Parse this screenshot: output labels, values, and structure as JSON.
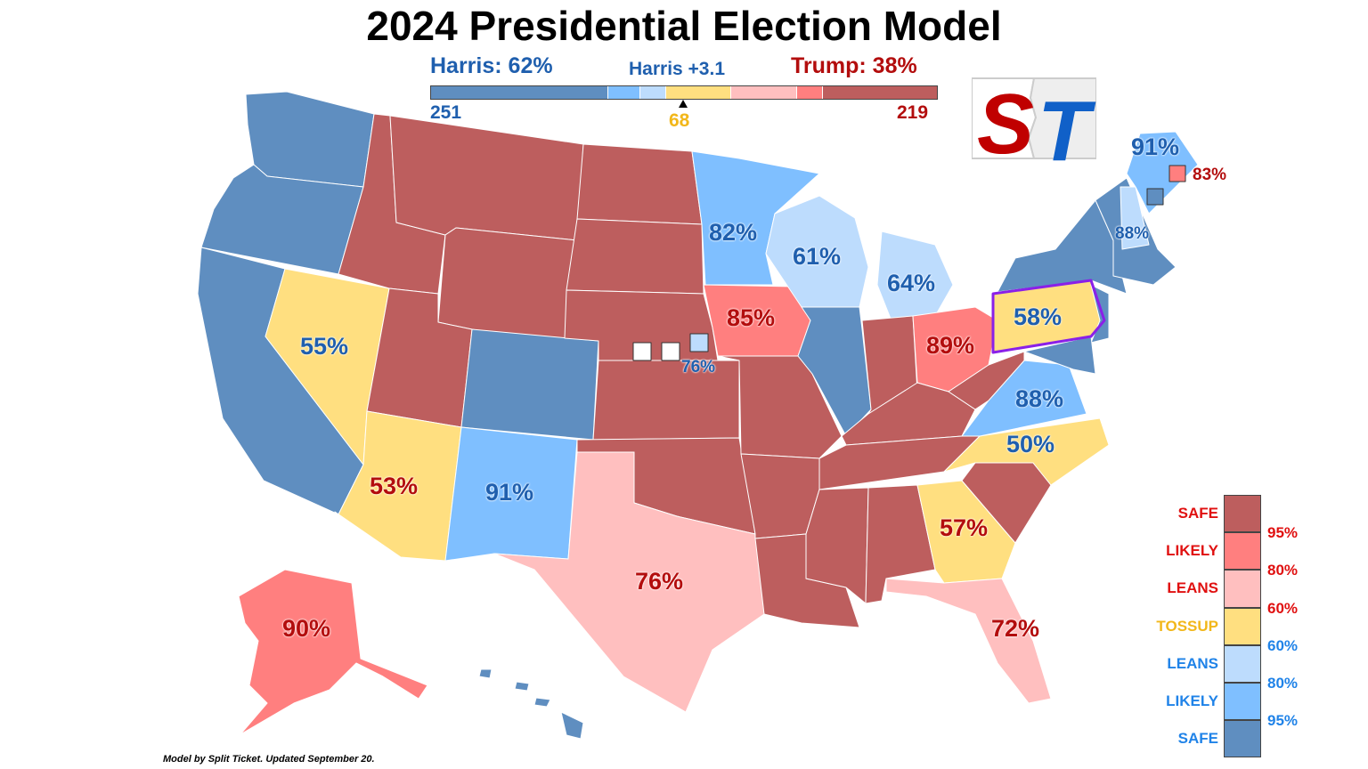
{
  "title": "2024 Presidential Election Model",
  "header": {
    "left": "Harris: 62%",
    "middle": "Harris +3.1",
    "right": "Trump: 38%",
    "harris_ev": "251",
    "tossup_ev": "68",
    "trump_ev": "219"
  },
  "colors": {
    "safe_d": "#5f8ec0",
    "likely_d": "#7fbfff",
    "leans_d": "#bddcfd",
    "tossup": "#ffdf80",
    "leans_r": "#ffbfbf",
    "likely_r": "#ff7f7f",
    "safe_r": "#bd5e5e",
    "harris_text": "#1f5fae",
    "trump_text": "#b30d0d",
    "legend_r_text": "#e01010",
    "legend_d_text": "#2083e8",
    "tossup_text": "#f2b71a"
  },
  "bar_segments": [
    {
      "rating": "safe_d",
      "share": 0.352
    },
    {
      "rating": "likely_d",
      "share": 0.063
    },
    {
      "rating": "leans_d",
      "share": 0.049
    },
    {
      "rating": "tossup",
      "share": 0.128
    },
    {
      "rating": "leans_r",
      "share": 0.13
    },
    {
      "rating": "likely_r",
      "share": 0.051
    },
    {
      "rating": "safe_r",
      "share": 0.227
    }
  ],
  "state_labels": {
    "nv": "55%",
    "az": "53%",
    "nm": "91%",
    "tx": "76%",
    "ak": "90%",
    "mn": "82%",
    "wi": "61%",
    "mi": "64%",
    "ia": "85%",
    "ne2": "76%",
    "oh": "89%",
    "pa": "58%",
    "va": "88%",
    "nc": "50%",
    "ga": "57%",
    "fl": "72%",
    "me": "91%",
    "me2": "83%",
    "nh": "88%"
  },
  "legend": {
    "labels": [
      "SAFE",
      "LIKELY",
      "LEANS",
      "TOSSUP",
      "LEANS",
      "LIKELY",
      "SAFE"
    ],
    "thresholds": [
      "95%",
      "80%",
      "60%",
      "60%",
      "80%",
      "95%"
    ]
  },
  "logo": {
    "left_letter": "S",
    "right_letter": "T"
  },
  "footer": "Model by Split Ticket. Updated September 20."
}
